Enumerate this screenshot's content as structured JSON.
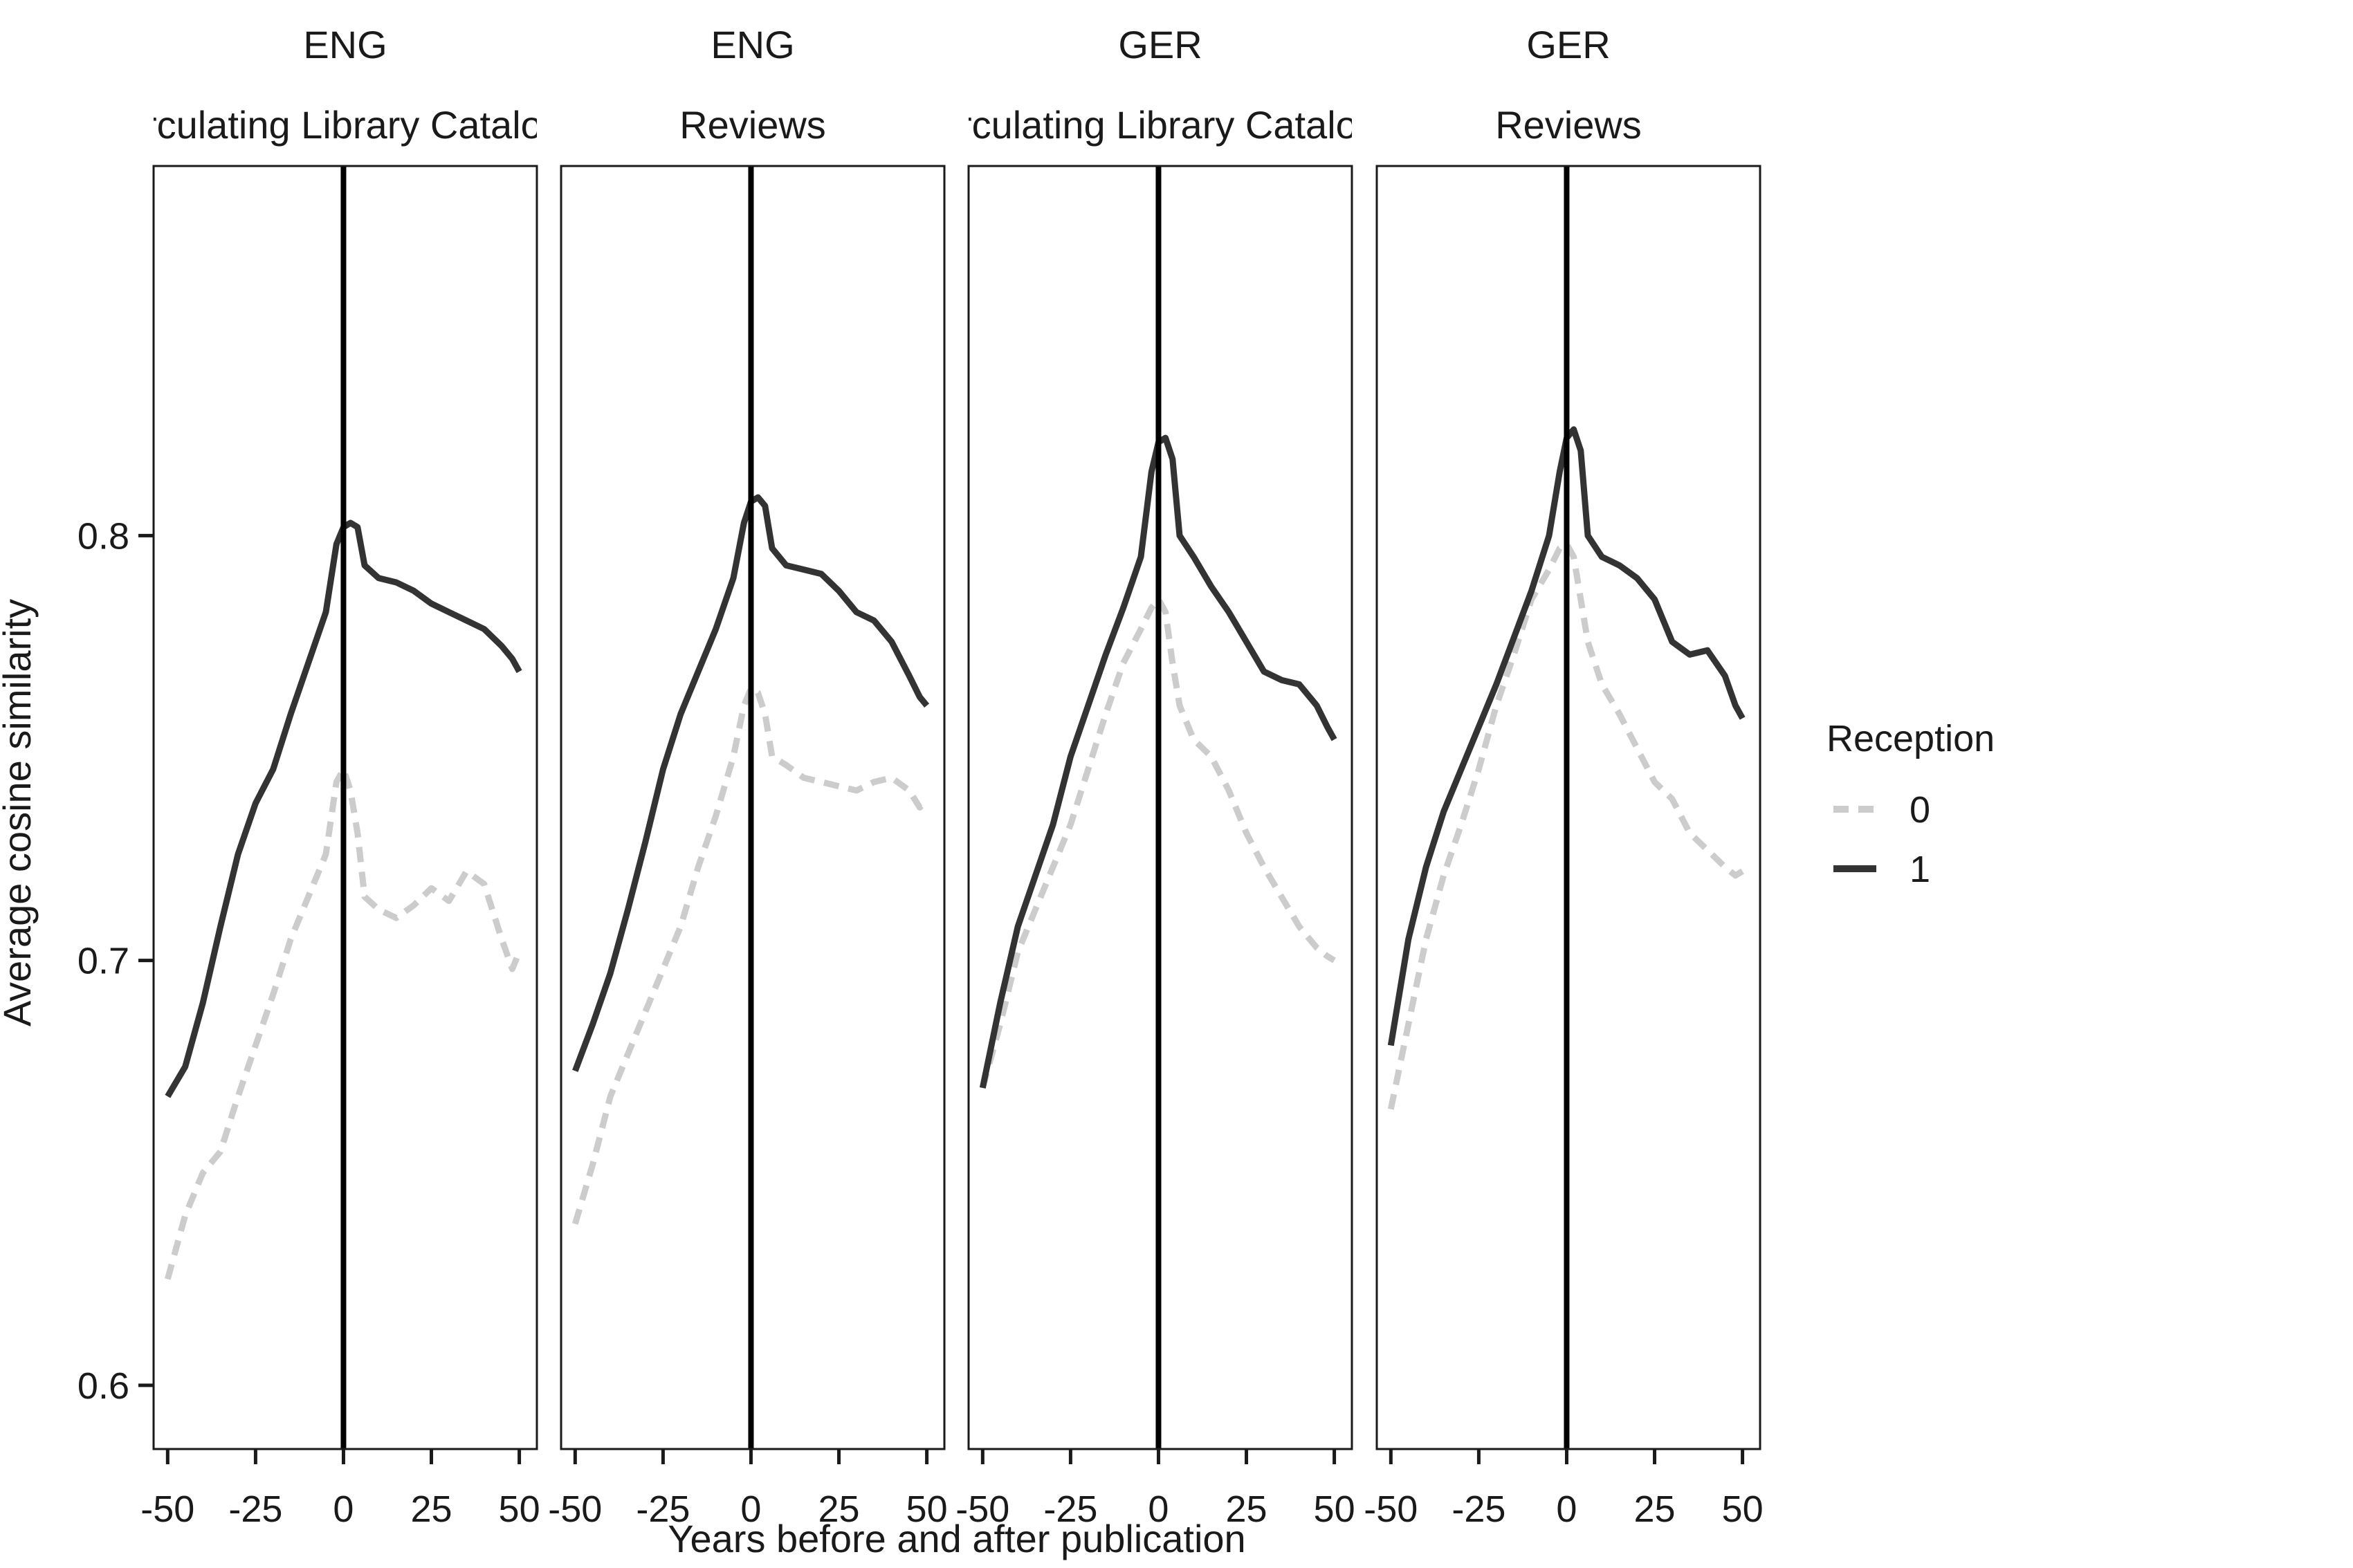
{
  "chart_data": {
    "type": "line",
    "ylabel": "Average cosine similarity",
    "xlabel": "Years before and after publication",
    "ylim": [
      0.585,
      0.887
    ],
    "xlim": [
      -54,
      55
    ],
    "x_ticks": [
      -50,
      -25,
      0,
      25,
      50
    ],
    "y_ticks": [
      0.6,
      0.7,
      0.8
    ],
    "vertical_reference_line": 0,
    "legend": {
      "title": "Reception",
      "placement": "right",
      "entries": [
        {
          "label": "0",
          "color": "#cccccc",
          "dash": "dashed"
        },
        {
          "label": "1",
          "color": "#333333",
          "dash": "solid"
        }
      ]
    },
    "panels": [
      {
        "strip_top": "ENG",
        "strip_bottom": "Circulating Library Catalogs",
        "series": [
          {
            "name": "0",
            "x": [
              -50,
              -45,
              -40,
              -35,
              -30,
              -25,
              -20,
              -15,
              -10,
              -5,
              -2,
              0,
              2,
              4,
              6,
              10,
              15,
              20,
              25,
              30,
              35,
              40,
              45,
              48,
              50
            ],
            "y": [
              0.625,
              0.64,
              0.65,
              0.655,
              0.668,
              0.68,
              0.692,
              0.705,
              0.715,
              0.725,
              0.742,
              0.745,
              0.74,
              0.73,
              0.715,
              0.712,
              0.71,
              0.713,
              0.717,
              0.714,
              0.721,
              0.718,
              0.705,
              0.698,
              0.702
            ]
          },
          {
            "name": "1",
            "x": [
              -50,
              -45,
              -40,
              -35,
              -30,
              -25,
              -20,
              -15,
              -10,
              -5,
              -2,
              0,
              2,
              4,
              6,
              10,
              15,
              20,
              25,
              30,
              35,
              40,
              45,
              48,
              50
            ],
            "y": [
              0.668,
              0.675,
              0.69,
              0.708,
              0.725,
              0.737,
              0.745,
              0.758,
              0.77,
              0.782,
              0.798,
              0.802,
              0.803,
              0.802,
              0.793,
              0.79,
              0.789,
              0.787,
              0.784,
              0.782,
              0.78,
              0.778,
              0.774,
              0.771,
              0.768
            ]
          }
        ]
      },
      {
        "strip_top": "ENG",
        "strip_bottom": "Reviews",
        "series": [
          {
            "name": "0",
            "x": [
              -50,
              -45,
              -40,
              -35,
              -30,
              -25,
              -20,
              -15,
              -10,
              -5,
              -2,
              0,
              2,
              4,
              6,
              10,
              15,
              20,
              25,
              30,
              35,
              40,
              45,
              48,
              50
            ],
            "y": [
              0.638,
              0.652,
              0.668,
              0.678,
              0.688,
              0.698,
              0.708,
              0.722,
              0.734,
              0.748,
              0.76,
              0.764,
              0.763,
              0.758,
              0.748,
              0.746,
              0.743,
              0.742,
              0.741,
              0.74,
              0.742,
              0.743,
              0.74,
              0.736,
              0.738
            ]
          },
          {
            "name": "1",
            "x": [
              -50,
              -45,
              -40,
              -35,
              -30,
              -25,
              -20,
              -15,
              -10,
              -5,
              -2,
              0,
              2,
              4,
              6,
              10,
              15,
              20,
              25,
              30,
              35,
              40,
              45,
              48,
              50
            ],
            "y": [
              0.674,
              0.685,
              0.697,
              0.712,
              0.728,
              0.745,
              0.758,
              0.768,
              0.778,
              0.79,
              0.803,
              0.808,
              0.809,
              0.807,
              0.797,
              0.793,
              0.792,
              0.791,
              0.787,
              0.782,
              0.78,
              0.775,
              0.767,
              0.762,
              0.76
            ]
          }
        ]
      },
      {
        "strip_top": "GER",
        "strip_bottom": "Circulating Library Catalogs",
        "series": [
          {
            "name": "0",
            "x": [
              -50,
              -45,
              -40,
              -35,
              -30,
              -25,
              -20,
              -15,
              -10,
              -5,
              -2,
              0,
              2,
              4,
              6,
              10,
              15,
              20,
              25,
              30,
              35,
              40,
              45,
              48,
              50
            ],
            "y": [
              0.67,
              0.685,
              0.702,
              0.712,
              0.722,
              0.732,
              0.745,
              0.758,
              0.77,
              0.778,
              0.783,
              0.785,
              0.782,
              0.77,
              0.76,
              0.752,
              0.748,
              0.74,
              0.73,
              0.722,
              0.715,
              0.708,
              0.703,
              0.701,
              0.7
            ]
          },
          {
            "name": "1",
            "x": [
              -50,
              -45,
              -40,
              -35,
              -30,
              -25,
              -20,
              -15,
              -10,
              -5,
              -2,
              0,
              2,
              4,
              6,
              10,
              15,
              20,
              25,
              30,
              35,
              40,
              45,
              48,
              50
            ],
            "y": [
              0.67,
              0.69,
              0.708,
              0.72,
              0.732,
              0.748,
              0.76,
              0.772,
              0.783,
              0.795,
              0.815,
              0.822,
              0.823,
              0.818,
              0.8,
              0.795,
              0.788,
              0.782,
              0.775,
              0.768,
              0.766,
              0.765,
              0.76,
              0.755,
              0.752
            ]
          }
        ]
      },
      {
        "strip_top": "GER",
        "strip_bottom": "Reviews",
        "series": [
          {
            "name": "0",
            "x": [
              -50,
              -45,
              -40,
              -35,
              -30,
              -25,
              -20,
              -15,
              -10,
              -5,
              -2,
              0,
              2,
              4,
              6,
              10,
              15,
              20,
              25,
              30,
              35,
              40,
              45,
              48,
              50
            ],
            "y": [
              0.665,
              0.685,
              0.705,
              0.72,
              0.732,
              0.745,
              0.76,
              0.772,
              0.785,
              0.792,
              0.797,
              0.798,
              0.795,
              0.785,
              0.775,
              0.765,
              0.758,
              0.75,
              0.742,
              0.738,
              0.73,
              0.726,
              0.722,
              0.72,
              0.721
            ]
          },
          {
            "name": "1",
            "x": [
              -50,
              -45,
              -40,
              -35,
              -30,
              -25,
              -20,
              -15,
              -10,
              -5,
              -2,
              0,
              2,
              4,
              6,
              10,
              15,
              20,
              25,
              30,
              35,
              40,
              45,
              48,
              50
            ],
            "y": [
              0.68,
              0.705,
              0.722,
              0.735,
              0.745,
              0.755,
              0.765,
              0.776,
              0.787,
              0.8,
              0.815,
              0.823,
              0.825,
              0.82,
              0.8,
              0.795,
              0.793,
              0.79,
              0.785,
              0.775,
              0.772,
              0.773,
              0.767,
              0.76,
              0.757
            ]
          }
        ]
      }
    ]
  }
}
